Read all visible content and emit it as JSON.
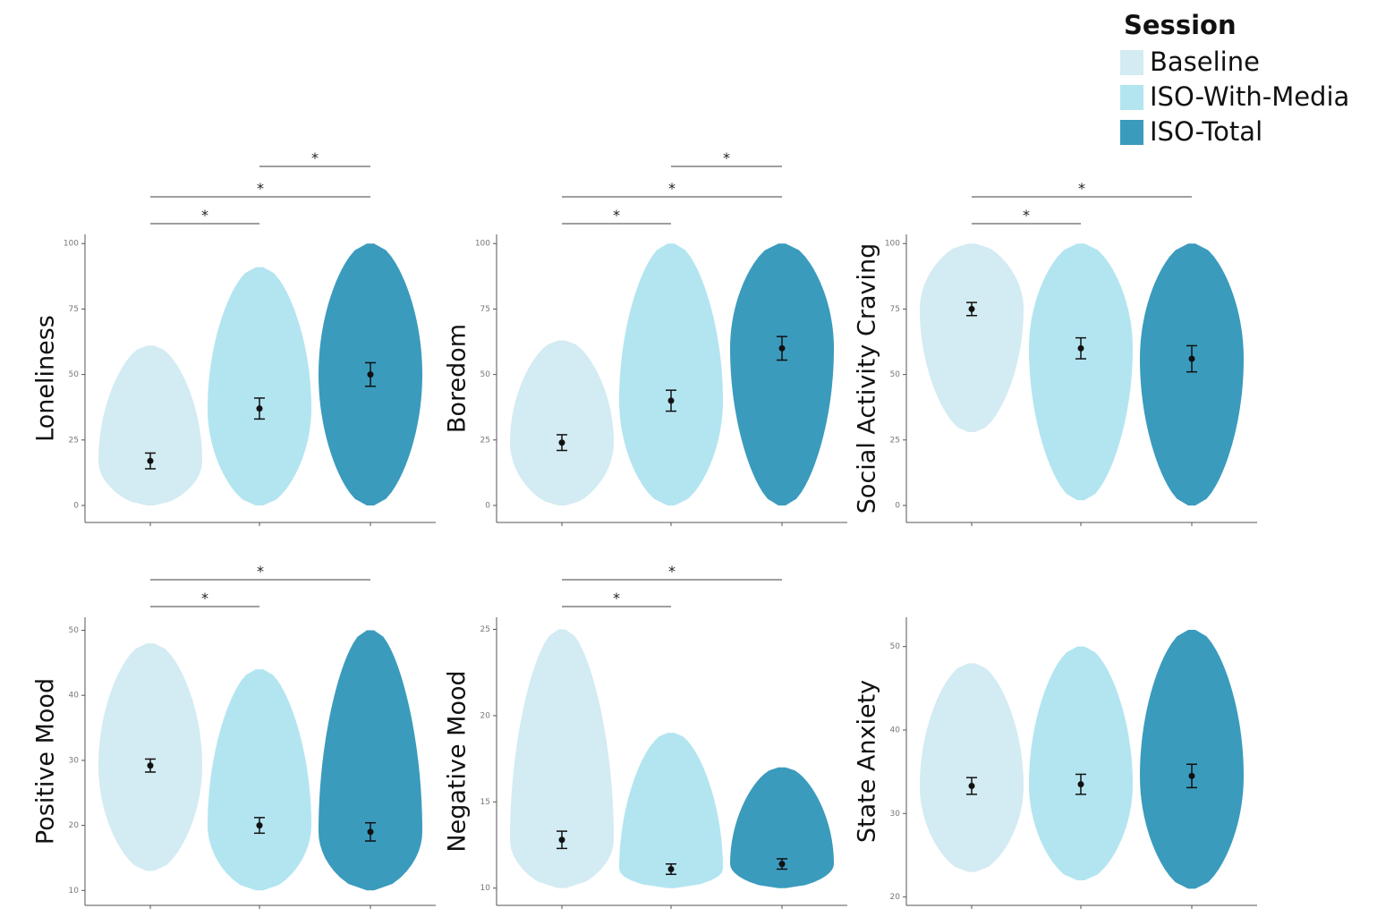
{
  "legend": {
    "title": "Session",
    "items": [
      {
        "name": "Baseline",
        "color": "#d3ebf2"
      },
      {
        "name": "ISO-With-Media",
        "color": "#b3e5f1"
      },
      {
        "name": "ISO-Total",
        "color": "#3a9bbd"
      }
    ]
  },
  "chart_data": [
    {
      "type": "violin",
      "y_label": "Loneliness",
      "ylim": [
        -6.5,
        103.5
      ],
      "yticks": [
        0,
        25,
        50,
        75,
        100
      ],
      "groups": [
        {
          "mean": 17,
          "error": 3,
          "min": 0,
          "max": 61
        },
        {
          "mean": 37,
          "error": 4,
          "min": 0,
          "max": 91
        },
        {
          "mean": 50,
          "error": 4.5,
          "min": 0,
          "max": 100
        }
      ],
      "comparisons": [
        {
          "from": 0,
          "to": 1,
          "label": "*"
        },
        {
          "from": 0,
          "to": 2,
          "label": "*"
        },
        {
          "from": 1,
          "to": 2,
          "label": "*"
        }
      ]
    },
    {
      "type": "violin",
      "y_label": "Boredom",
      "ylim": [
        -6.5,
        103.5
      ],
      "yticks": [
        0,
        25,
        50,
        75,
        100
      ],
      "groups": [
        {
          "mean": 24,
          "error": 3,
          "min": 0,
          "max": 63
        },
        {
          "mean": 40,
          "error": 4,
          "min": 0,
          "max": 100
        },
        {
          "mean": 60,
          "error": 4.5,
          "min": 0,
          "max": 100
        }
      ],
      "comparisons": [
        {
          "from": 0,
          "to": 1,
          "label": "*"
        },
        {
          "from": 0,
          "to": 2,
          "label": "*"
        },
        {
          "from": 1,
          "to": 2,
          "label": "*"
        }
      ]
    },
    {
      "type": "violin",
      "y_label": "Social Activity Craving",
      "ylim": [
        -6.5,
        103.5
      ],
      "yticks": [
        0,
        25,
        50,
        75,
        100
      ],
      "groups": [
        {
          "mean": 75,
          "error": 2.5,
          "min": 28,
          "max": 100
        },
        {
          "mean": 60,
          "error": 4,
          "min": 2,
          "max": 100
        },
        {
          "mean": 56,
          "error": 5,
          "min": 0,
          "max": 100
        }
      ],
      "comparisons": [
        {
          "from": 0,
          "to": 1,
          "label": "*"
        },
        {
          "from": 0,
          "to": 2,
          "label": "*"
        }
      ]
    },
    {
      "type": "violin",
      "y_label": "Positive Mood",
      "ylim": [
        7.7,
        52
      ],
      "yticks": [
        10,
        20,
        30,
        40,
        50
      ],
      "groups": [
        {
          "mean": 29.2,
          "error": 1,
          "min": 13,
          "max": 48
        },
        {
          "mean": 20,
          "error": 1.2,
          "min": 10,
          "max": 44
        },
        {
          "mean": 19,
          "error": 1.4,
          "min": 10,
          "max": 50
        }
      ],
      "comparisons": [
        {
          "from": 0,
          "to": 1,
          "label": "*"
        },
        {
          "from": 0,
          "to": 2,
          "label": "*"
        }
      ]
    },
    {
      "type": "violin",
      "y_label": "Negative Mood",
      "ylim": [
        9,
        25.7
      ],
      "yticks": [
        10,
        15,
        20,
        25
      ],
      "groups": [
        {
          "mean": 12.8,
          "error": 0.5,
          "min": 10,
          "max": 25
        },
        {
          "mean": 11.1,
          "error": 0.3,
          "min": 10,
          "max": 19
        },
        {
          "mean": 11.4,
          "error": 0.3,
          "min": 10,
          "max": 17
        }
      ],
      "comparisons": [
        {
          "from": 0,
          "to": 1,
          "label": "*"
        },
        {
          "from": 0,
          "to": 2,
          "label": "*"
        }
      ]
    },
    {
      "type": "violin",
      "y_label": "State Anxiety",
      "ylim": [
        19,
        53.5
      ],
      "yticks": [
        20,
        30,
        40,
        50
      ],
      "groups": [
        {
          "mean": 33.3,
          "error": 1,
          "min": 23,
          "max": 48
        },
        {
          "mean": 33.5,
          "error": 1.2,
          "min": 22,
          "max": 50
        },
        {
          "mean": 34.5,
          "error": 1.4,
          "min": 21,
          "max": 52
        }
      ],
      "comparisons": []
    }
  ]
}
